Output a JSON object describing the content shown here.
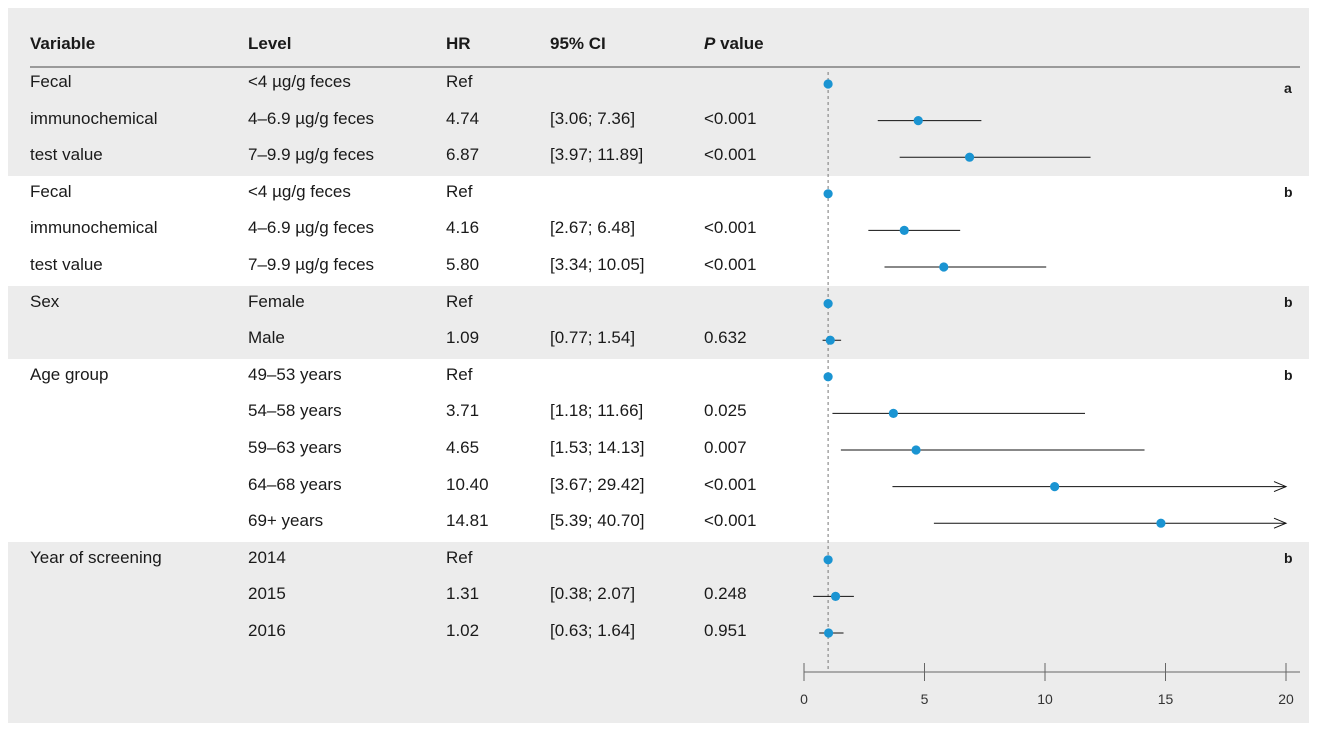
{
  "headers": {
    "variable": "Variable",
    "level": "Level",
    "hr": "HR",
    "ci": "95% CI",
    "p_italic": "P",
    "p_rest": " value"
  },
  "groups": [
    {
      "tag": "a",
      "variable_lines": [
        "Fecal",
        "immunochemical",
        "test value"
      ],
      "rows": [
        {
          "level": "<4 µg/g feces",
          "hr": "Ref",
          "ci": "",
          "p": ""
        },
        {
          "level": "4–6.9 µg/g feces",
          "hr": "4.74",
          "ci": "[3.06; 7.36]",
          "p": "<0.001"
        },
        {
          "level": "7–9.9 µg/g feces",
          "hr": "6.87",
          "ci": "[3.97; 11.89]",
          "p": "<0.001"
        }
      ]
    },
    {
      "tag": "b",
      "variable_lines": [
        "Fecal",
        "immunochemical",
        "test value"
      ],
      "rows": [
        {
          "level": "<4 µg/g feces",
          "hr": "Ref",
          "ci": "",
          "p": ""
        },
        {
          "level": "4–6.9 µg/g feces",
          "hr": "4.16",
          "ci": "[2.67; 6.48]",
          "p": "<0.001"
        },
        {
          "level": "7–9.9 µg/g feces",
          "hr": "5.80",
          "ci": "[3.34; 10.05]",
          "p": "<0.001"
        }
      ]
    },
    {
      "tag": "b",
      "variable_lines": [
        "Sex"
      ],
      "rows": [
        {
          "level": "Female",
          "hr": "Ref",
          "ci": "",
          "p": ""
        },
        {
          "level": "Male",
          "hr": "1.09",
          "ci": "[0.77; 1.54]",
          "p": "0.632"
        }
      ]
    },
    {
      "tag": "b",
      "variable_lines": [
        "Age group"
      ],
      "rows": [
        {
          "level": "49–53 years",
          "hr": "Ref",
          "ci": "",
          "p": ""
        },
        {
          "level": "54–58 years",
          "hr": "3.71",
          "ci": "[1.18; 11.66]",
          "p": "0.025"
        },
        {
          "level": "59–63 years",
          "hr": "4.65",
          "ci": "[1.53; 14.13]",
          "p": "0.007"
        },
        {
          "level": "64–68 years",
          "hr": "10.40",
          "ci": "[3.67; 29.42]",
          "p": "<0.001"
        },
        {
          "level": "69+ years",
          "hr": "14.81",
          "ci": "[5.39; 40.70]",
          "p": "<0.001"
        }
      ]
    },
    {
      "tag": "b",
      "variable_lines": [
        "Year of screening"
      ],
      "rows": [
        {
          "level": "2014",
          "hr": "Ref",
          "ci": "",
          "p": ""
        },
        {
          "level": "2015",
          "hr": "1.31",
          "ci": "[0.38; 2.07]",
          "p": "0.248"
        },
        {
          "level": "2016",
          "hr": "1.02",
          "ci": "[0.63; 1.64]",
          "p": "0.951"
        }
      ]
    }
  ],
  "colors": {
    "point": "#1a94d2",
    "band_alt": "#ececec",
    "band_white": "#ffffff",
    "reference_line": "#777777"
  },
  "chart_data": {
    "type": "forest",
    "xlim": [
      0,
      20
    ],
    "x_ticks": [
      0,
      5,
      10,
      15,
      20
    ],
    "reference_value": 1,
    "rows": [
      {
        "hr": 1,
        "lo": null,
        "hi": null
      },
      {
        "hr": 4.74,
        "lo": 3.06,
        "hi": 7.36
      },
      {
        "hr": 6.87,
        "lo": 3.97,
        "hi": 11.89
      },
      {
        "hr": 1,
        "lo": null,
        "hi": null
      },
      {
        "hr": 4.16,
        "lo": 2.67,
        "hi": 6.48
      },
      {
        "hr": 5.8,
        "lo": 3.34,
        "hi": 10.05
      },
      {
        "hr": 1,
        "lo": null,
        "hi": null
      },
      {
        "hr": 1.09,
        "lo": 0.77,
        "hi": 1.54
      },
      {
        "hr": 1,
        "lo": null,
        "hi": null
      },
      {
        "hr": 3.71,
        "lo": 1.18,
        "hi": 11.66
      },
      {
        "hr": 4.65,
        "lo": 1.53,
        "hi": 14.13
      },
      {
        "hr": 10.4,
        "lo": 3.67,
        "hi": 29.42
      },
      {
        "hr": 14.81,
        "lo": 5.39,
        "hi": 40.7
      },
      {
        "hr": 1,
        "lo": null,
        "hi": null
      },
      {
        "hr": 1.31,
        "lo": 0.38,
        "hi": 2.07
      },
      {
        "hr": 1.02,
        "lo": 0.63,
        "hi": 1.64
      }
    ]
  }
}
